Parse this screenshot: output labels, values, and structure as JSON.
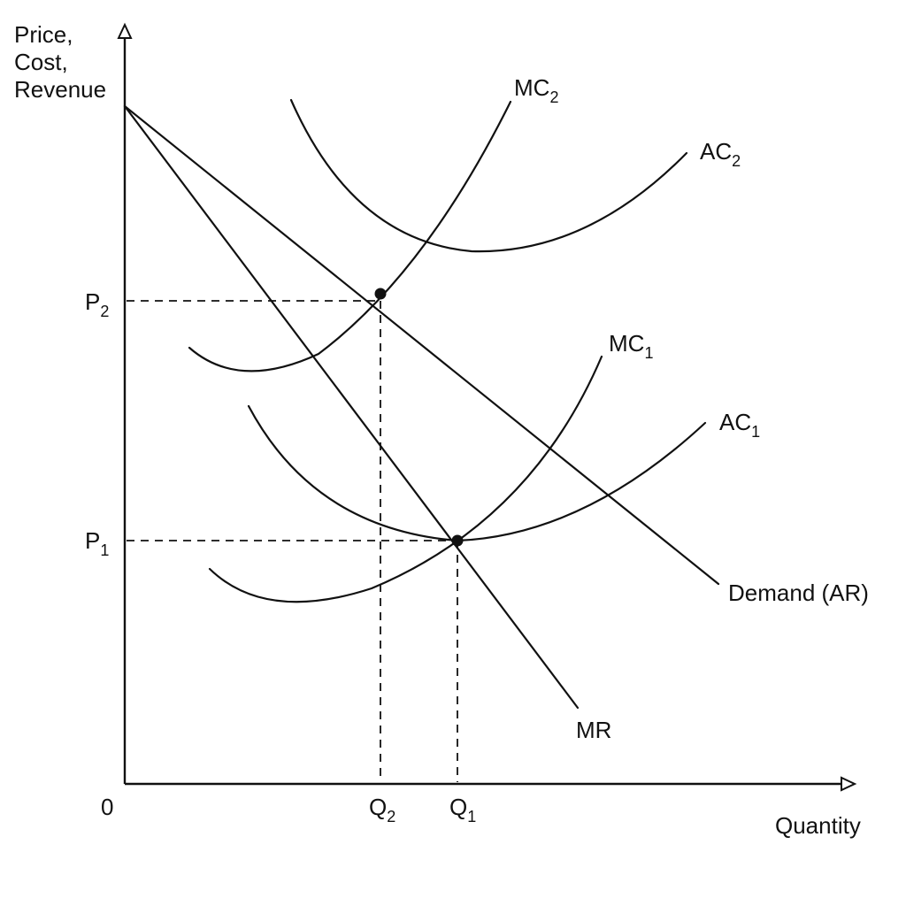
{
  "axes": {
    "y_label_lines": [
      "Price,",
      "Cost,",
      "Revenue"
    ],
    "x_label": "Quantity",
    "origin": "0"
  },
  "price_ticks": [
    {
      "base": "P",
      "sub": "2"
    },
    {
      "base": "P",
      "sub": "1"
    }
  ],
  "quantity_ticks": [
    {
      "base": "Q",
      "sub": "2"
    },
    {
      "base": "Q",
      "sub": "1"
    }
  ],
  "curves": {
    "mc2": {
      "base": "MC",
      "sub": "2"
    },
    "ac2": {
      "base": "AC",
      "sub": "2"
    },
    "mc1": {
      "base": "MC",
      "sub": "1"
    },
    "ac1": {
      "base": "AC",
      "sub": "1"
    },
    "demand": "Demand (AR)",
    "mr": "MR"
  },
  "colors": {
    "ink": "#111111",
    "background": "#ffffff"
  }
}
